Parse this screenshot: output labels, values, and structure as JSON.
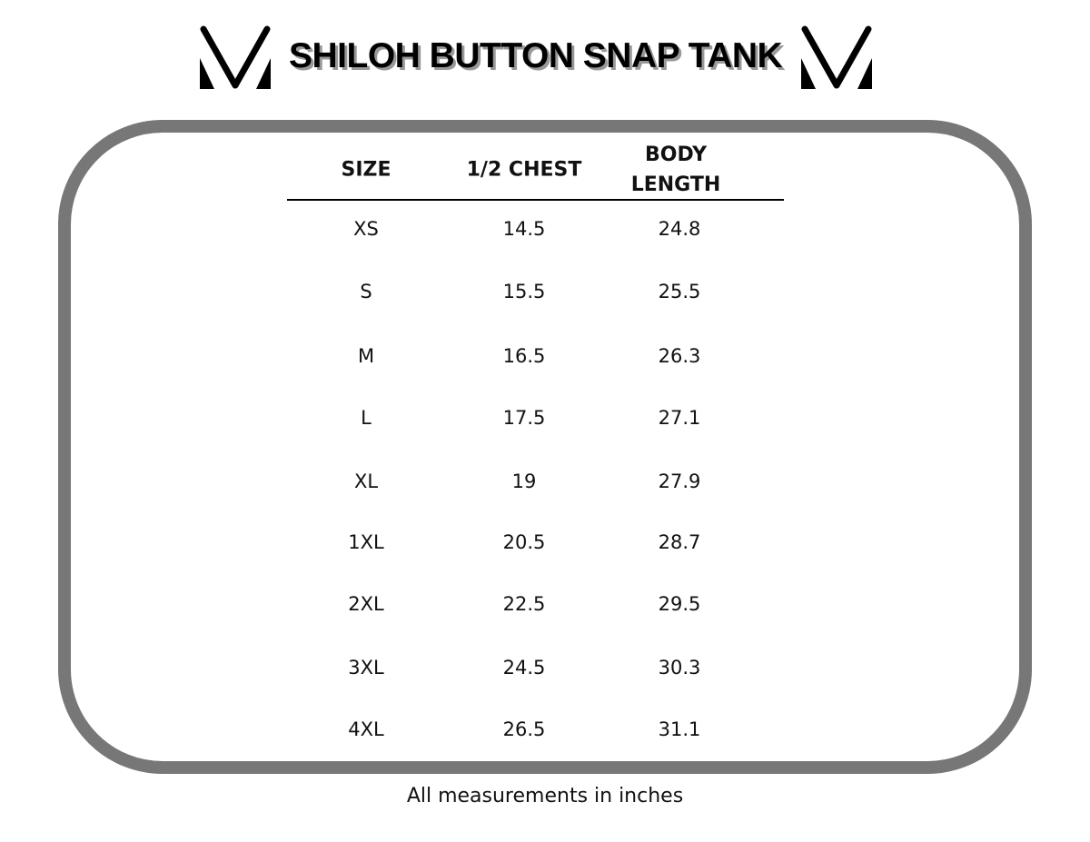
{
  "title": "SHILOH BUTTON SNAP TANK",
  "logo_icon": "v-brand-logo",
  "frame_color": "#777777",
  "table": {
    "headers": [
      "SIZE",
      "1/2 CHEST",
      "BODY LENGTH"
    ],
    "header_lines": {
      "body_1": "BODY",
      "body_2": "LENGTH"
    },
    "rows": [
      [
        "XS",
        "14.5",
        "24.8"
      ],
      [
        "S",
        "15.5",
        "25.5"
      ],
      [
        "M",
        "16.5",
        "26.3"
      ],
      [
        "L",
        "17.5",
        "27.1"
      ],
      [
        "XL",
        "19",
        "27.9"
      ],
      [
        "1XL",
        "20.5",
        "28.7"
      ],
      [
        "2XL",
        "22.5",
        "29.5"
      ],
      [
        "3XL",
        "24.5",
        "30.3"
      ],
      [
        "4XL",
        "26.5",
        "31.1"
      ]
    ]
  },
  "footer": "All measurements in inches"
}
